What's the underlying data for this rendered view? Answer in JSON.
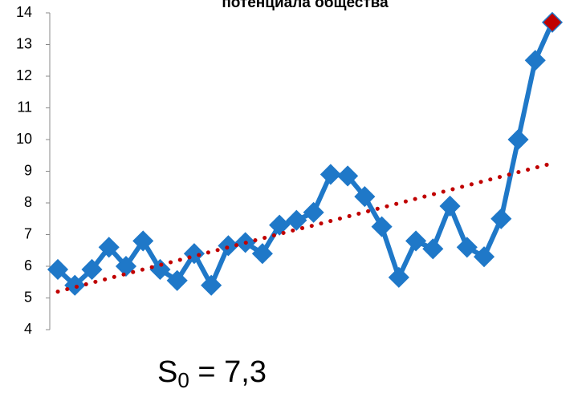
{
  "chart_data": {
    "type": "line",
    "title": "потенциала общества",
    "categories": [
      null,
      null,
      null,
      null,
      null,
      null,
      null,
      null,
      null,
      null,
      null,
      null,
      null,
      null,
      null,
      null,
      null,
      null,
      null,
      null,
      null,
      null,
      null,
      null,
      null,
      null,
      null,
      null,
      null,
      null
    ],
    "series": [
      {
        "color": "#1f78c8",
        "values": [
          5.9,
          5.4,
          5.9,
          6.6,
          6.0,
          6.8,
          5.9,
          5.55,
          6.4,
          5.4,
          6.65,
          6.75,
          6.4,
          7.3,
          7.45,
          7.7,
          8.9,
          8.85,
          8.2,
          7.25,
          5.65,
          6.8,
          6.55,
          7.9,
          6.6,
          6.3,
          7.5,
          10.0,
          12.5,
          13.7
        ],
        "last_point_color": "#c00000"
      },
      {
        "color": "#c00000",
        "style": "dotted",
        "values": [
          5.2,
          5.34,
          5.48,
          5.62,
          5.76,
          5.9,
          6.04,
          6.18,
          6.32,
          6.46,
          6.6,
          6.74,
          6.88,
          7.02,
          7.16,
          7.29,
          7.43,
          7.57,
          7.71,
          7.85,
          7.99,
          8.13,
          8.27,
          8.41,
          8.55,
          8.69,
          8.83,
          8.97,
          9.11,
          9.25
        ]
      }
    ],
    "ylim": [
      4,
      14
    ],
    "yticks": [
      4,
      5,
      6,
      7,
      8,
      9,
      10,
      11,
      12,
      13,
      14
    ],
    "annotation": {
      "base": "S",
      "sub": "0",
      "rest": " = 7,3"
    }
  }
}
